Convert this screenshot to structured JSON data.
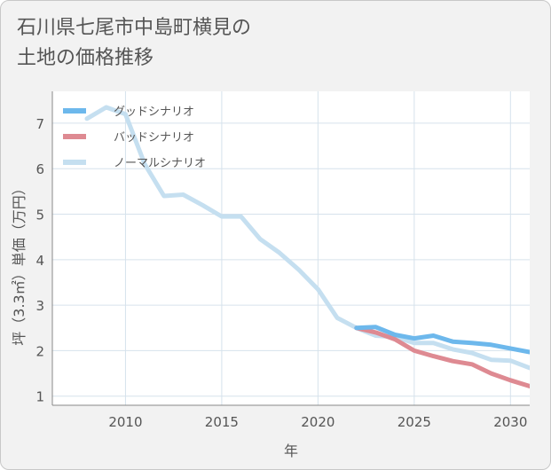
{
  "title_lines": [
    "石川県七尾市中島町横見の",
    "土地の価格推移"
  ],
  "chart_data": {
    "type": "line",
    "xlabel": "年",
    "ylabel": "坪（3.3㎡）単価（万円）",
    "xlim": [
      2006.2,
      2031.0
    ],
    "ylim": [
      0.8,
      7.7
    ],
    "xticks": [
      2010,
      2015,
      2020,
      2025,
      2030
    ],
    "yticks": [
      1,
      2,
      3,
      4,
      5,
      6,
      7
    ],
    "grid": true,
    "legend_position": "top-left",
    "series": [
      {
        "name": "グッドシナリオ",
        "color": "#6db8ec",
        "x": [
          2022,
          2023,
          2024,
          2025,
          2026,
          2027,
          2028,
          2029,
          2030,
          2031
        ],
        "y": [
          2.5,
          2.52,
          2.35,
          2.27,
          2.33,
          2.2,
          2.17,
          2.13,
          2.05,
          1.97
        ]
      },
      {
        "name": "バッドシナリオ",
        "color": "#de8a92",
        "x": [
          2022,
          2023,
          2024,
          2025,
          2026,
          2027,
          2028,
          2029,
          2030,
          2031
        ],
        "y": [
          2.5,
          2.4,
          2.25,
          2.0,
          1.88,
          1.77,
          1.7,
          1.5,
          1.35,
          1.22
        ]
      },
      {
        "name": "ノーマルシナリオ",
        "color": "#c5dff0",
        "x": [
          2008,
          2009,
          2010,
          2011,
          2012,
          2013,
          2014,
          2015,
          2016,
          2017,
          2018,
          2019,
          2020,
          2021,
          2022,
          2023,
          2024,
          2025,
          2026,
          2027,
          2028,
          2029,
          2030,
          2031
        ],
        "y": [
          7.1,
          7.35,
          7.2,
          6.1,
          5.4,
          5.43,
          5.2,
          4.95,
          4.95,
          4.45,
          4.15,
          3.78,
          3.35,
          2.72,
          2.5,
          2.33,
          2.3,
          2.17,
          2.17,
          2.03,
          1.95,
          1.8,
          1.78,
          1.62
        ]
      }
    ]
  }
}
